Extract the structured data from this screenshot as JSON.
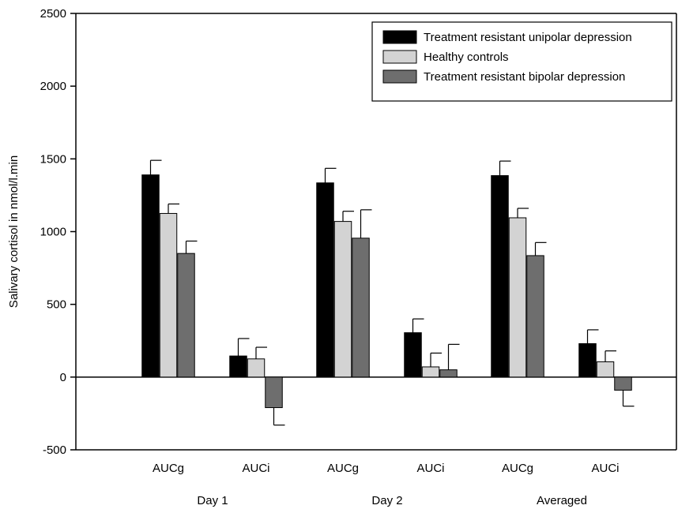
{
  "chart_data": {
    "type": "bar",
    "ylabel": "Salivary cortisol in nmol/l.min",
    "ylim": [
      -500,
      2500
    ],
    "yticks": [
      -500,
      0,
      500,
      1000,
      1500,
      2000,
      2500
    ],
    "grid": false,
    "legend_position": "top-right",
    "categories": [
      "AUCg",
      "AUCi",
      "AUCg",
      "AUCi",
      "AUCg",
      "AUCi"
    ],
    "groups": [
      "Day 1",
      "Day 2",
      "Averaged"
    ],
    "series": [
      {
        "name": "Treatment resistant unipolar depression",
        "color": "#000000",
        "values": [
          1390,
          145,
          1335,
          305,
          1385,
          230
        ],
        "errors": [
          100,
          120,
          100,
          95,
          100,
          95
        ]
      },
      {
        "name": "Healthy controls",
        "color": "#d3d3d3",
        "values": [
          1125,
          125,
          1070,
          70,
          1095,
          105
        ],
        "errors": [
          65,
          80,
          70,
          95,
          65,
          75
        ]
      },
      {
        "name": "Treatment resistant bipolar depression",
        "color": "#6e6e6e",
        "values": [
          850,
          -210,
          955,
          50,
          835,
          -90
        ],
        "errors": [
          85,
          120,
          195,
          175,
          90,
          110
        ]
      }
    ]
  }
}
